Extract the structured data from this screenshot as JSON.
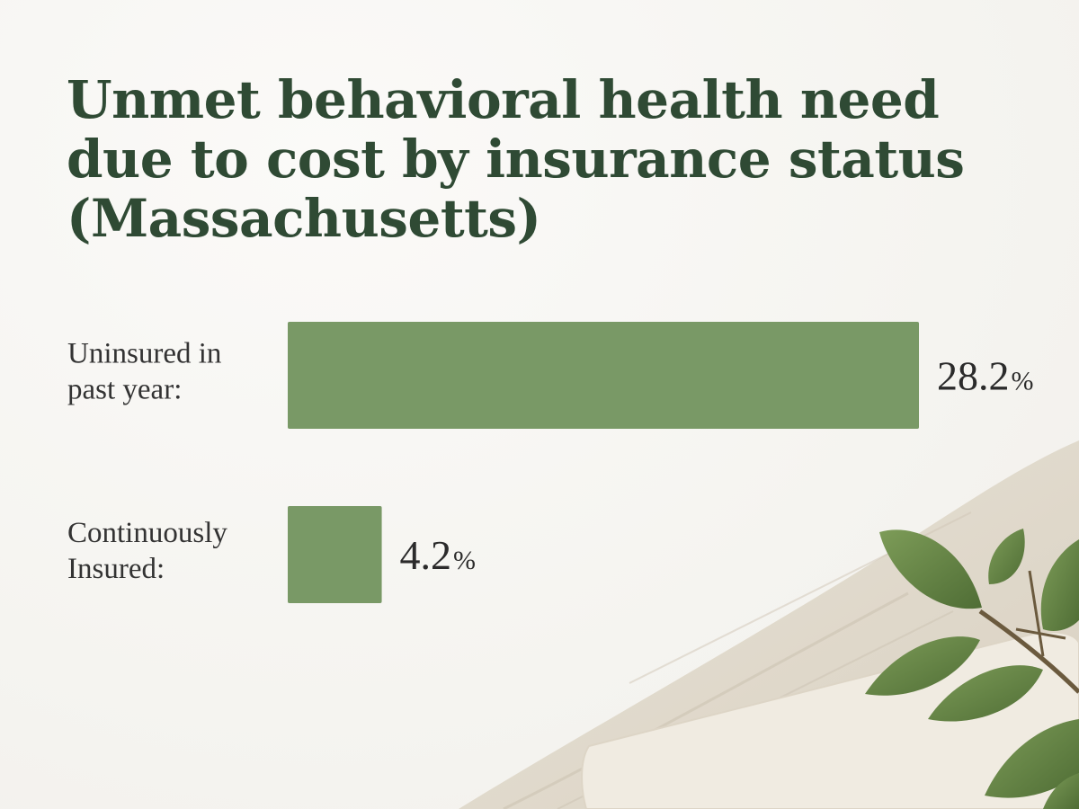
{
  "chart_data": {
    "type": "bar",
    "orientation": "horizontal",
    "title_lines": [
      "Unmet behavioral health need",
      "due to cost by insurance status",
      "(Massachusetts)"
    ],
    "categories": [
      [
        "Uninsured in",
        "past year:"
      ],
      [
        "Continuously",
        "Insured:"
      ]
    ],
    "values": [
      28.2,
      4.2
    ],
    "value_unit": "%",
    "xlim": [
      0,
      28.2
    ],
    "grid": false,
    "legend": "none",
    "bar_color": "#7ea06b"
  }
}
